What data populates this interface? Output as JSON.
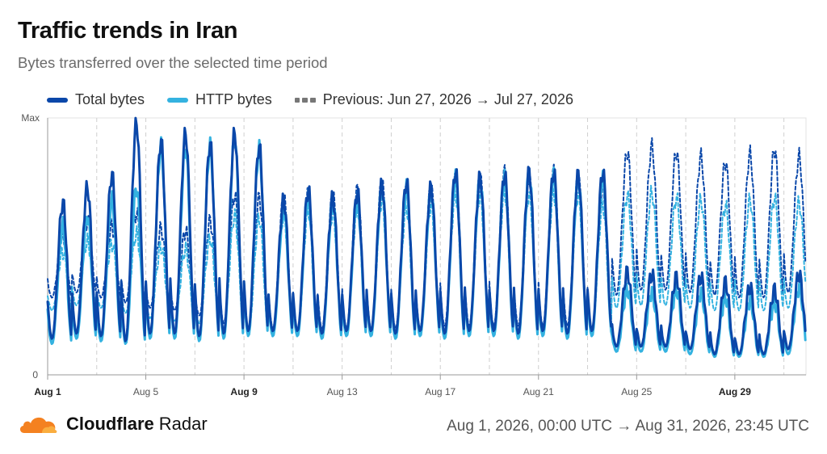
{
  "header": {
    "title": "Traffic trends in Iran",
    "subtitle": "Bytes transferred over the selected time period"
  },
  "legend": {
    "items": [
      {
        "label": "Total bytes",
        "color": "#0a47a9",
        "style": "solid"
      },
      {
        "label": "HTTP bytes",
        "color": "#34b2e0",
        "style": "solid"
      },
      {
        "label": "Previous: Jun 27, 2026 → Jul 27, 2026",
        "color": "#777777",
        "style": "dashed"
      }
    ]
  },
  "footer": {
    "brand_bold": "Cloudflare",
    "brand_light": "Radar",
    "range": "Aug 1, 2026, 00:00 UTC → Aug 31, 2026, 23:45 UTC"
  },
  "chart_data": {
    "type": "line",
    "xlabel": "",
    "ylabel": "",
    "y_tick_labels": [
      "0",
      "Max"
    ],
    "ylim": [
      0,
      1
    ],
    "xlim": [
      0,
      30.9
    ],
    "grid": "dashed vertical daily gridlines",
    "legend_position": "top-left",
    "x_ticks": [
      {
        "value": 0,
        "label": "Aug 1",
        "bold": true
      },
      {
        "value": 4,
        "label": "Aug 5",
        "bold": false
      },
      {
        "value": 8,
        "label": "Aug 9",
        "bold": true
      },
      {
        "value": 12,
        "label": "Aug 13",
        "bold": false
      },
      {
        "value": 16,
        "label": "Aug 17",
        "bold": false
      },
      {
        "value": 20,
        "label": "Aug 21",
        "bold": false
      },
      {
        "value": 24,
        "label": "Aug 25",
        "bold": false
      },
      {
        "value": 28,
        "label": "Aug 29",
        "bold": true
      }
    ],
    "daily": {
      "total_peak": [
        0.67,
        0.73,
        0.78,
        0.98,
        0.91,
        0.94,
        0.9,
        0.94,
        0.89,
        0.68,
        0.72,
        0.69,
        0.71,
        0.74,
        0.75,
        0.73,
        0.79,
        0.77,
        0.78,
        0.79,
        0.79,
        0.78,
        0.79,
        0.4,
        0.39,
        0.38,
        0.38,
        0.36,
        0.34,
        0.33,
        0.39
      ],
      "total_trough": [
        0.14,
        0.16,
        0.15,
        0.13,
        0.16,
        0.16,
        0.15,
        0.16,
        0.17,
        0.17,
        0.17,
        0.16,
        0.17,
        0.17,
        0.16,
        0.17,
        0.16,
        0.17,
        0.17,
        0.16,
        0.17,
        0.16,
        0.17,
        0.11,
        0.11,
        0.11,
        0.1,
        0.08,
        0.08,
        0.08,
        0.1
      ],
      "http_peak": [
        0.58,
        0.62,
        0.68,
        0.73,
        0.89,
        0.88,
        0.89,
        0.92,
        0.88,
        0.64,
        0.69,
        0.67,
        0.68,
        0.72,
        0.73,
        0.71,
        0.77,
        0.76,
        0.77,
        0.78,
        0.78,
        0.76,
        0.77,
        0.33,
        0.32,
        0.33,
        0.32,
        0.3,
        0.29,
        0.28,
        0.34
      ],
      "http_trough": [
        0.12,
        0.14,
        0.13,
        0.12,
        0.14,
        0.14,
        0.13,
        0.14,
        0.15,
        0.15,
        0.15,
        0.14,
        0.15,
        0.15,
        0.14,
        0.15,
        0.14,
        0.15,
        0.15,
        0.14,
        0.15,
        0.14,
        0.15,
        0.09,
        0.09,
        0.09,
        0.08,
        0.07,
        0.07,
        0.07,
        0.08
      ],
      "prev_total_peak": [
        0.55,
        0.6,
        0.58,
        0.63,
        0.57,
        0.56,
        0.6,
        0.7,
        0.69,
        0.69,
        0.71,
        0.7,
        0.72,
        0.75,
        0.72,
        0.73,
        0.77,
        0.77,
        0.79,
        0.77,
        0.79,
        0.77,
        0.73,
        0.87,
        0.89,
        0.87,
        0.85,
        0.83,
        0.86,
        0.88,
        0.85
      ],
      "prev_total_trough": [
        0.3,
        0.32,
        0.3,
        0.28,
        0.26,
        0.25,
        0.23,
        0.2,
        0.18,
        0.18,
        0.17,
        0.18,
        0.18,
        0.18,
        0.18,
        0.18,
        0.19,
        0.19,
        0.19,
        0.19,
        0.19,
        0.19,
        0.18,
        0.31,
        0.33,
        0.33,
        0.32,
        0.31,
        0.3,
        0.3,
        0.32
      ],
      "prev_http_peak": [
        0.48,
        0.52,
        0.51,
        0.55,
        0.5,
        0.49,
        0.53,
        0.62,
        0.61,
        0.62,
        0.64,
        0.63,
        0.65,
        0.68,
        0.65,
        0.66,
        0.7,
        0.7,
        0.71,
        0.7,
        0.71,
        0.7,
        0.66,
        0.7,
        0.71,
        0.69,
        0.68,
        0.66,
        0.68,
        0.69,
        0.67
      ],
      "prev_http_trough": [
        0.25,
        0.27,
        0.26,
        0.24,
        0.22,
        0.21,
        0.2,
        0.18,
        0.16,
        0.16,
        0.15,
        0.16,
        0.16,
        0.16,
        0.16,
        0.16,
        0.17,
        0.17,
        0.17,
        0.17,
        0.17,
        0.17,
        0.16,
        0.26,
        0.27,
        0.27,
        0.26,
        0.25,
        0.25,
        0.25,
        0.26
      ]
    },
    "series": [
      {
        "name": "Total bytes",
        "color": "#0a47a9",
        "dash": false,
        "peak_key": "total_peak",
        "trough_key": "total_trough"
      },
      {
        "name": "HTTP bytes",
        "color": "#34b2e0",
        "dash": false,
        "peak_key": "http_peak",
        "trough_key": "http_trough"
      },
      {
        "name": "Previous: Jun 27, 2026 → Jul 27, 2026",
        "color": "#0a47a9",
        "dash": true,
        "peak_key": "prev_total_peak",
        "trough_key": "prev_total_trough"
      },
      {
        "name": "Previous: Jun 27, 2026 → Jul 27, 2026",
        "color": "#34b2e0",
        "dash": true,
        "peak_key": "prev_http_peak",
        "trough_key": "prev_http_trough"
      }
    ]
  }
}
